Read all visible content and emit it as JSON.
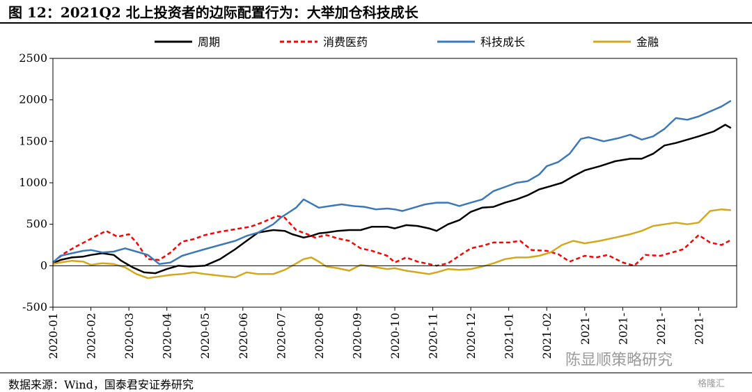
{
  "title": "图 12：2021Q2 北上投资者的边际配置行为：大举加仓科技成长",
  "source": "数据来源：Wind，国泰君安证券研究",
  "watermark": "陈显顺策略研究",
  "logo": "格隆汇",
  "chart_data": {
    "type": "line",
    "ylim": [
      -500,
      2500
    ],
    "yticks": [
      2500,
      2000,
      1500,
      1000,
      500,
      0,
      -500
    ],
    "xticks": [
      "2020-01",
      "2020-02",
      "2020-03",
      "2020-04",
      "2020-05",
      "2020-06",
      "2020-07",
      "2020-08",
      "2020-09",
      "2020-10",
      "2020-11",
      "2020-12",
      "2021-01",
      "2021-02",
      "2021-",
      "2021-",
      "2021-",
      "2021-"
    ],
    "legend_position": "top",
    "grid": false,
    "series": [
      {
        "name": "周期",
        "color": "#000000",
        "style": "solid",
        "x": [
          0,
          0.2,
          0.5,
          0.8,
          1.0,
          1.3,
          1.6,
          1.8,
          2.1,
          2.4,
          2.7,
          3.0,
          3.3,
          3.6,
          4.0,
          4.4,
          4.8,
          5.1,
          5.4,
          5.8,
          6.1,
          6.3,
          6.6,
          6.8,
          7.0,
          7.2,
          7.5,
          7.8,
          8.1,
          8.4,
          8.8,
          9.0,
          9.3,
          9.6,
          9.9,
          10.1,
          10.4,
          10.7,
          11.0,
          11.3,
          11.6,
          11.9,
          12.2,
          12.5,
          12.8,
          13.1,
          13.4,
          13.7,
          14.0,
          14.4,
          14.8,
          15.2,
          15.5,
          15.8,
          16.1,
          16.4,
          16.7,
          17.0,
          17.4,
          17.7,
          17.85
        ],
        "y": [
          30,
          70,
          100,
          110,
          130,
          150,
          130,
          60,
          -20,
          -80,
          -90,
          -40,
          0,
          -10,
          0,
          80,
          200,
          300,
          400,
          430,
          420,
          380,
          340,
          360,
          390,
          400,
          420,
          430,
          430,
          470,
          470,
          450,
          490,
          480,
          450,
          420,
          500,
          550,
          650,
          700,
          710,
          760,
          800,
          850,
          920,
          960,
          1000,
          1080,
          1150,
          1200,
          1260,
          1290,
          1290,
          1350,
          1450,
          1480,
          1520,
          1560,
          1620,
          1700,
          1660
        ]
      },
      {
        "name": "消费医药",
        "color": "#ff0000",
        "style": "dashed",
        "x": [
          0,
          0.3,
          0.6,
          0.9,
          1.1,
          1.4,
          1.7,
          2.0,
          2.2,
          2.5,
          2.8,
          3.1,
          3.4,
          3.7,
          4.0,
          4.4,
          4.8,
          5.2,
          5.5,
          5.9,
          6.1,
          6.4,
          6.7,
          6.9,
          7.2,
          7.5,
          7.8,
          8.1,
          8.4,
          8.8,
          9.0,
          9.3,
          9.6,
          9.9,
          10.1,
          10.4,
          10.7,
          11.0,
          11.3,
          11.6,
          12.0,
          12.3,
          12.6,
          13.0,
          13.3,
          13.6,
          14.0,
          14.3,
          14.6,
          15.0,
          15.3,
          15.6,
          16.0,
          16.3,
          16.6,
          17.0,
          17.3,
          17.6,
          17.85
        ],
        "y": [
          40,
          150,
          230,
          300,
          350,
          420,
          350,
          380,
          280,
          80,
          70,
          160,
          290,
          320,
          370,
          410,
          440,
          470,
          520,
          600,
          580,
          430,
          380,
          340,
          370,
          330,
          300,
          210,
          180,
          120,
          40,
          100,
          50,
          20,
          0,
          30,
          120,
          210,
          240,
          280,
          280,
          300,
          190,
          180,
          140,
          50,
          120,
          100,
          130,
          40,
          0,
          130,
          120,
          160,
          200,
          370,
          280,
          250,
          310
        ]
      },
      {
        "name": "科技成长",
        "color": "#3a78b8",
        "style": "solid",
        "x": [
          0,
          0.2,
          0.5,
          0.8,
          1.0,
          1.3,
          1.6,
          1.9,
          2.2,
          2.5,
          2.8,
          3.1,
          3.4,
          3.7,
          4.0,
          4.4,
          4.8,
          5.1,
          5.4,
          5.8,
          6.0,
          6.2,
          6.4,
          6.6,
          6.8,
          7.0,
          7.3,
          7.6,
          7.9,
          8.2,
          8.5,
          8.8,
          9.0,
          9.2,
          9.5,
          9.8,
          10.1,
          10.4,
          10.7,
          11.0,
          11.3,
          11.6,
          11.9,
          12.2,
          12.5,
          12.8,
          13.0,
          13.3,
          13.6,
          13.9,
          14.1,
          14.5,
          14.9,
          15.2,
          15.5,
          15.8,
          16.1,
          16.4,
          16.7,
          17.0,
          17.3,
          17.6,
          17.85
        ],
        "y": [
          40,
          120,
          150,
          180,
          190,
          160,
          170,
          210,
          170,
          130,
          20,
          40,
          120,
          160,
          200,
          250,
          300,
          360,
          400,
          500,
          580,
          640,
          700,
          800,
          750,
          700,
          720,
          740,
          720,
          710,
          680,
          690,
          680,
          660,
          700,
          740,
          760,
          760,
          720,
          760,
          800,
          900,
          950,
          1000,
          1020,
          1100,
          1200,
          1250,
          1350,
          1530,
          1550,
          1500,
          1540,
          1580,
          1520,
          1560,
          1650,
          1780,
          1760,
          1800,
          1860,
          1920,
          1990
        ]
      },
      {
        "name": "金融",
        "color": "#d4a81c",
        "style": "solid",
        "x": [
          0,
          0.2,
          0.5,
          0.8,
          1.0,
          1.3,
          1.6,
          1.9,
          2.2,
          2.5,
          2.8,
          3.1,
          3.4,
          3.7,
          4.0,
          4.4,
          4.8,
          5.1,
          5.4,
          5.8,
          6.1,
          6.3,
          6.6,
          6.8,
          7.0,
          7.2,
          7.5,
          7.8,
          8.1,
          8.4,
          8.8,
          9.0,
          9.3,
          9.6,
          9.9,
          10.1,
          10.4,
          10.7,
          11.0,
          11.3,
          11.6,
          11.9,
          12.2,
          12.5,
          12.8,
          13.1,
          13.4,
          13.7,
          14.0,
          14.4,
          14.8,
          15.2,
          15.5,
          15.8,
          16.1,
          16.4,
          16.7,
          17.0,
          17.3,
          17.6,
          17.85
        ],
        "y": [
          20,
          40,
          60,
          50,
          10,
          30,
          20,
          -20,
          -100,
          -150,
          -130,
          -110,
          -100,
          -80,
          -100,
          -120,
          -140,
          -80,
          -100,
          -100,
          -50,
          0,
          80,
          100,
          50,
          -10,
          -30,
          -60,
          10,
          -10,
          -40,
          -30,
          -60,
          -80,
          -100,
          -80,
          -40,
          -50,
          -40,
          -10,
          30,
          80,
          100,
          100,
          120,
          160,
          250,
          300,
          270,
          300,
          340,
          380,
          420,
          480,
          500,
          520,
          500,
          520,
          660,
          680,
          670
        ]
      }
    ]
  }
}
